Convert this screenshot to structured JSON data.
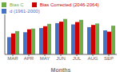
{
  "chart_data": {
    "type": "bar",
    "categories": [
      "MAR",
      "APR",
      "MAY",
      "JUN",
      "JUL",
      "AUG",
      "SEP"
    ],
    "series": [
      {
        "name": "d (1961-2000)",
        "color": "#4472C4",
        "values": [
          9.5,
          12.2,
          14.5,
          17.2,
          16.5,
          15.0,
          13.2
        ]
      },
      {
        "name": "Bias Corrected (2046-2064)",
        "color": "#CC0000",
        "values": [
          11.5,
          13.8,
          15.5,
          18.0,
          17.8,
          16.2,
          12.5
        ]
      },
      {
        "name": "Bias C",
        "color": "#70AD47",
        "values": [
          12.8,
          14.2,
          16.8,
          19.5,
          19.0,
          17.0,
          15.8
        ]
      }
    ],
    "xlabel": "Months",
    "ylim": [
      0,
      22
    ],
    "yticks": [],
    "tick_labels": "x",
    "legend": "upper left",
    "grid": false
  }
}
